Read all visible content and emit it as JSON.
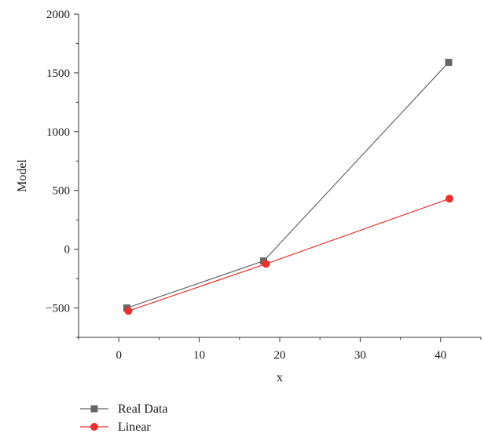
{
  "chart_data": {
    "type": "line",
    "title": "",
    "xlabel": "x",
    "ylabel": "Model",
    "xlim": [
      -5,
      45
    ],
    "ylim": [
      -750,
      2000
    ],
    "xticks": [
      0,
      10,
      20,
      30,
      40
    ],
    "yticks": [
      -500,
      0,
      500,
      1000,
      1500,
      2000
    ],
    "ytick_labels": [
      "−500",
      "0",
      "500",
      "1000",
      "1500",
      "2000"
    ],
    "legend_position": "bottom-left",
    "series": [
      {
        "name": "Real Data",
        "color": "#666666",
        "marker": "square",
        "x": [
          1,
          18,
          41
        ],
        "y": [
          -500,
          -100,
          1590
        ]
      },
      {
        "name": "Linear",
        "color": "#e8302f",
        "marker": "circle",
        "x": [
          1.2,
          18.3,
          41.1
        ],
        "y": [
          -525,
          -125,
          430
        ]
      }
    ]
  }
}
